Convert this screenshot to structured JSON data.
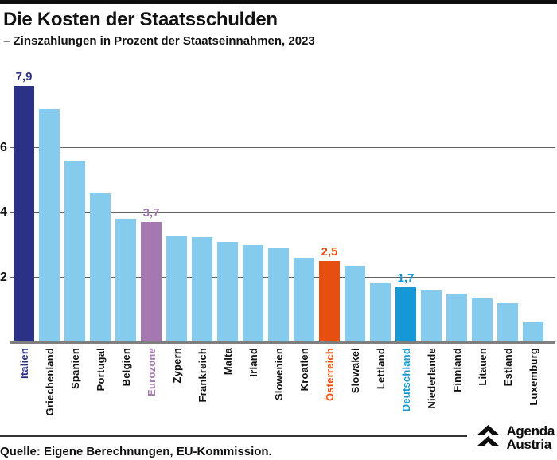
{
  "page": {
    "background": "#ffffff",
    "top_strip_color": "#111111"
  },
  "header": {
    "title": "Die Kosten der Staatsschulden",
    "subtitle": "– Zinszahlungen in Prozent der Staatseinnahmen, 2023"
  },
  "chart_data": {
    "type": "bar",
    "title": "Die Kosten der Staatsschulden",
    "subtitle": "– Zinszahlungen in Prozent der Staatseinnahmen, 2023",
    "categories": [
      "Italien",
      "Griechenland",
      "Spanien",
      "Portugal",
      "Belgien",
      "Eurozone",
      "Zypern",
      "Frankreich",
      "Malta",
      "Irland",
      "Slowenien",
      "Kroatien",
      "Österreich",
      "Slowakei",
      "Lettland",
      "Deutschland",
      "Niederlande",
      "Finnland",
      "Litauen",
      "Estland",
      "Luxemburg"
    ],
    "values": [
      7.9,
      7.2,
      5.6,
      4.6,
      3.8,
      3.7,
      3.3,
      3.25,
      3.1,
      3.0,
      2.9,
      2.6,
      2.5,
      2.35,
      1.85,
      1.7,
      1.6,
      1.5,
      1.35,
      1.2,
      0.65
    ],
    "default_bar_color": "#85cbee",
    "highlights": [
      {
        "index": 0,
        "category": "Italien",
        "bar_color": "#2a3187",
        "label": "7,9",
        "label_color": "#2a3187"
      },
      {
        "index": 5,
        "category": "Eurozone",
        "bar_color": "#a678b0",
        "label": "3,7",
        "label_color": "#a678b0"
      },
      {
        "index": 12,
        "category": "Österreich",
        "bar_color": "#e84e0f",
        "label": "2,5",
        "label_color": "#e84e0f"
      },
      {
        "index": 15,
        "category": "Deutschland",
        "bar_color": "#1499d6",
        "label": "1,7",
        "label_color": "#1499d6"
      }
    ],
    "yticks": [
      2,
      4,
      6
    ],
    "ylim": [
      0,
      8
    ],
    "grid": "horizontal",
    "legend": "none",
    "xlabel": "",
    "ylabel": ""
  },
  "footer": {
    "source": "Quelle: Eigene Berechnungen, EU-Kommission.",
    "logo": {
      "line1": "Agenda",
      "line2": "Austria"
    }
  }
}
